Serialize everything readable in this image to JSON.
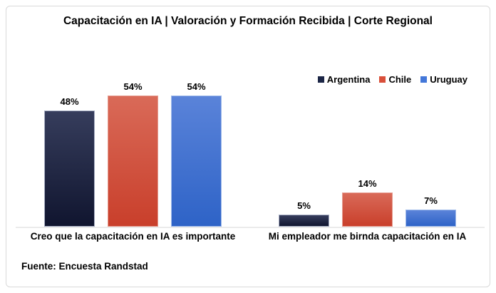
{
  "chart_data": {
    "type": "bar",
    "title": "Capacitación en IA | Valoración y Formación Recibida | Corte Regional",
    "categories": [
      "Creo que la capacitación en IA es importante",
      "Mi empleador me birnda capacitación en IA"
    ],
    "series": [
      {
        "name": "Argentina",
        "values": [
          48,
          5
        ],
        "labels": [
          "48%",
          "5%"
        ],
        "color_top": "#363d5c",
        "color_bottom": "#10152f",
        "edge_color": "#aab1c6",
        "legend_color": "#1c2646"
      },
      {
        "name": "Chile",
        "values": [
          54,
          14
        ],
        "labels": [
          "54%",
          "14%"
        ],
        "color_top": "#d96a58",
        "color_bottom": "#c93f2b",
        "edge_color": "#e59c90",
        "legend_color": "#d94f3a"
      },
      {
        "name": "Uruguay",
        "values": [
          54,
          7
        ],
        "labels": [
          "54%",
          "7%"
        ],
        "color_top": "#5a83d9",
        "color_bottom": "#2e63c7",
        "edge_color": "#9fbaea",
        "legend_color": "#4377d9"
      }
    ],
    "value_suffix": "%",
    "ylim": [
      0,
      60
    ],
    "grid": false,
    "legend_position": "top-right",
    "source": "Fuente: Encuesta Randstad"
  },
  "frame": {
    "background": "#ffffff",
    "border_color": "#d9d9d9",
    "axis_line_color": "#ebebeb",
    "text_color": "#000000"
  }
}
